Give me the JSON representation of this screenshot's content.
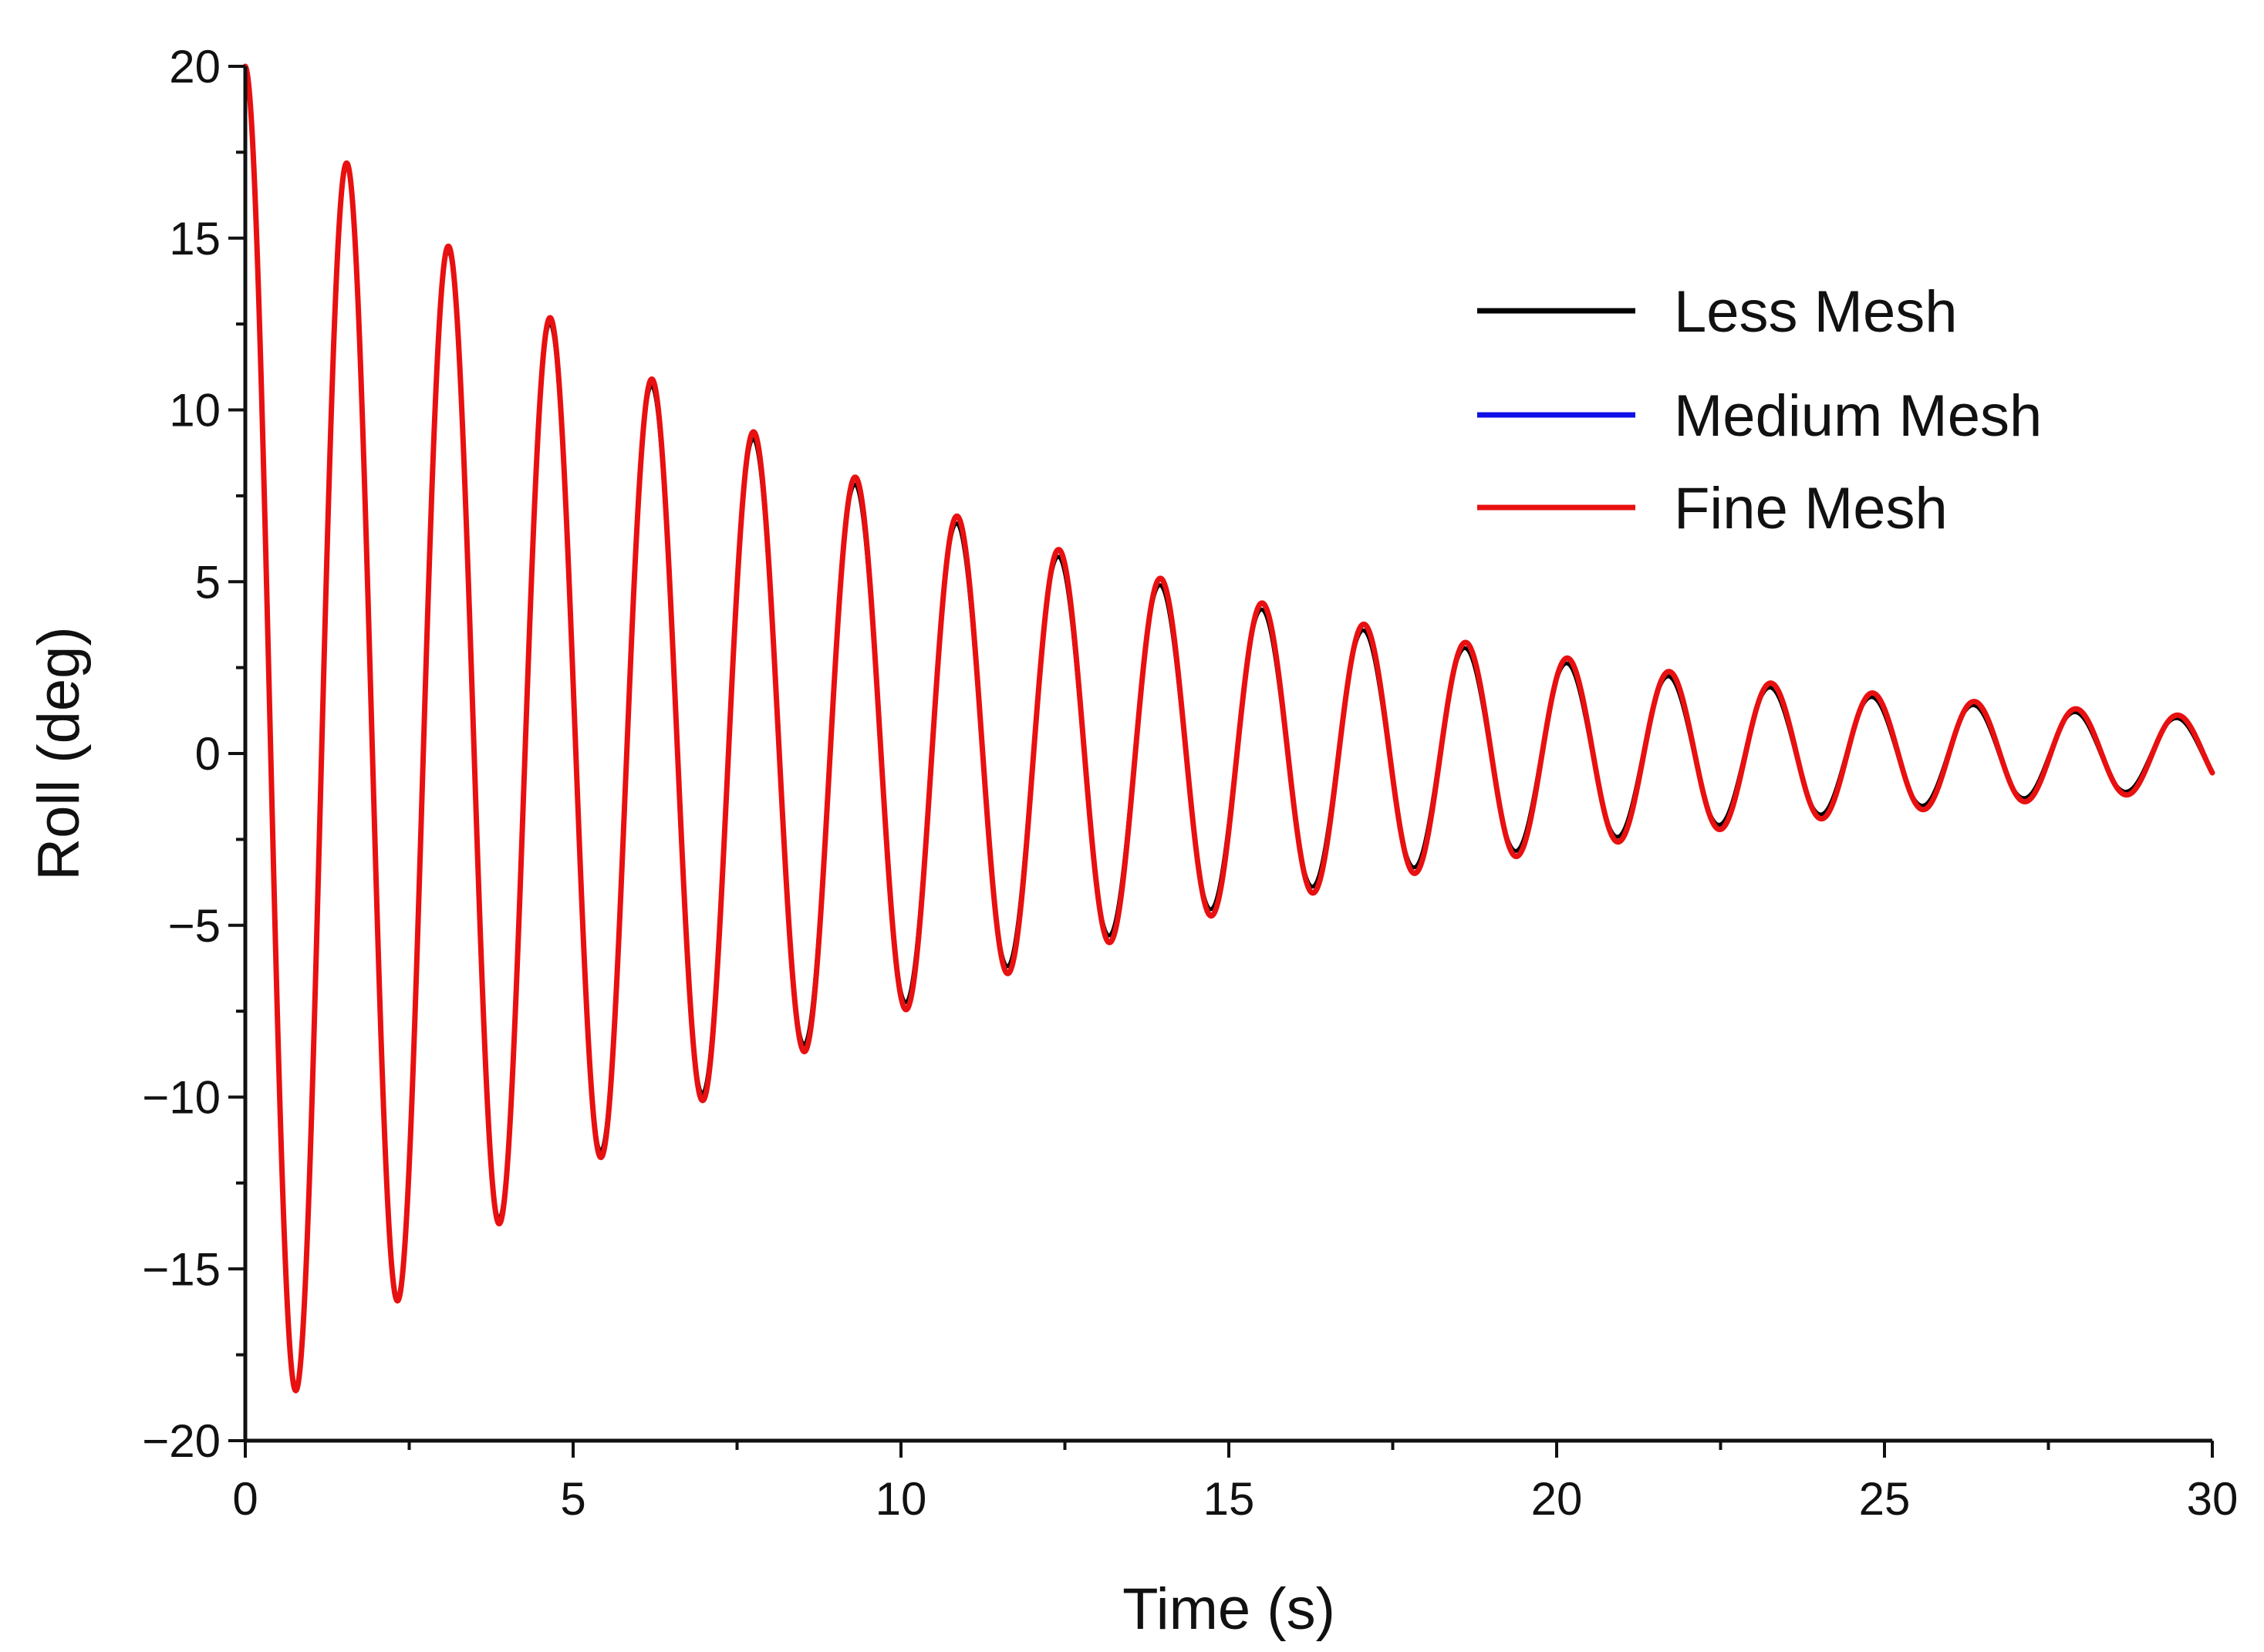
{
  "chart_data": {
    "type": "line",
    "title": "",
    "xlabel": "Time (s)",
    "ylabel": "Roll (deg)",
    "xlim": [
      0,
      30
    ],
    "ylim": [
      -20,
      20
    ],
    "xticks": [
      0,
      5,
      10,
      15,
      20,
      25,
      30
    ],
    "yticks": [
      -20,
      -15,
      -10,
      -5,
      0,
      5,
      10,
      15,
      20
    ],
    "x_tick_labels": [
      "0",
      "5",
      "10",
      "15",
      "20",
      "25",
      "30"
    ],
    "y_tick_labels": [
      "−20",
      "−15",
      "−10",
      "−5",
      "0",
      "5",
      "10",
      "15",
      "20"
    ],
    "grid": false,
    "legend_position": "top-right",
    "series": [
      {
        "name": "Less Mesh",
        "color": "#000000",
        "model": {
          "amplitude": 20,
          "period": 1.55,
          "decay": 0.1008,
          "phase_lag": 0.01
        },
        "peaks": [
          [
            0,
            20
          ],
          [
            0.78,
            -18.2
          ],
          [
            1.55,
            16.4
          ],
          [
            2.33,
            -15.0
          ],
          [
            3.1,
            13.7
          ],
          [
            3.88,
            -12.6
          ],
          [
            4.65,
            11.8
          ],
          [
            5.43,
            -10.8
          ],
          [
            6.2,
            10.2
          ],
          [
            6.98,
            -9.8
          ],
          [
            7.75,
            9.1
          ],
          [
            8.53,
            -8.8
          ],
          [
            9.3,
            8.0
          ],
          [
            10.08,
            -7.8
          ],
          [
            10.85,
            7.2
          ],
          [
            11.63,
            -6.9
          ],
          [
            12.4,
            6.3
          ],
          [
            13.18,
            -6.1
          ],
          [
            13.95,
            5.5
          ],
          [
            14.73,
            -5.3
          ],
          [
            15.5,
            4.9
          ],
          [
            16.28,
            -4.7
          ],
          [
            17.05,
            4.4
          ],
          [
            17.83,
            -4.4
          ],
          [
            18.6,
            4.0
          ],
          [
            19.38,
            -3.9
          ],
          [
            20.15,
            3.7
          ],
          [
            20.93,
            -3.5
          ],
          [
            21.7,
            3.4
          ],
          [
            22.48,
            -3.1
          ],
          [
            23.25,
            3.0
          ],
          [
            24.03,
            -2.9
          ],
          [
            24.8,
            2.7
          ],
          [
            25.58,
            -2.6
          ],
          [
            26.35,
            2.5
          ],
          [
            27.13,
            -2.4
          ],
          [
            27.9,
            2.3
          ],
          [
            28.68,
            -2.3
          ],
          [
            29.45,
            2.2
          ],
          [
            30.0,
            -2.3
          ]
        ]
      },
      {
        "name": "Medium Mesh",
        "color": "#1010e8",
        "model": {
          "amplitude": 20,
          "period": 1.55,
          "decay": 0.0984,
          "phase_lag": 0.02
        },
        "peaks": [
          [
            0,
            20
          ],
          [
            0.78,
            -18.3
          ],
          [
            1.55,
            16.5
          ],
          [
            2.33,
            -15.1
          ],
          [
            3.1,
            13.9
          ],
          [
            3.88,
            -12.9
          ],
          [
            4.65,
            12.2
          ],
          [
            5.43,
            -11.3
          ],
          [
            6.2,
            10.8
          ],
          [
            6.98,
            -10.3
          ],
          [
            7.75,
            9.8
          ],
          [
            8.53,
            -9.2
          ],
          [
            9.3,
            8.8
          ],
          [
            10.08,
            -8.4
          ],
          [
            10.85,
            8.0
          ],
          [
            11.63,
            -7.5
          ],
          [
            12.4,
            7.2
          ],
          [
            13.18,
            -6.8
          ],
          [
            13.95,
            6.4
          ],
          [
            14.73,
            -6.0
          ],
          [
            15.5,
            5.7
          ],
          [
            16.28,
            -5.3
          ],
          [
            17.05,
            5.0
          ],
          [
            17.83,
            -4.7
          ],
          [
            18.6,
            4.5
          ],
          [
            19.38,
            -4.2
          ],
          [
            20.15,
            4.0
          ],
          [
            20.93,
            -3.8
          ],
          [
            21.7,
            3.6
          ],
          [
            22.48,
            -3.3
          ],
          [
            23.25,
            3.3
          ],
          [
            24.03,
            -3.1
          ],
          [
            24.8,
            3.0
          ],
          [
            25.58,
            -2.8
          ],
          [
            26.35,
            2.7
          ],
          [
            27.13,
            -2.6
          ],
          [
            27.9,
            2.5
          ],
          [
            28.68,
            -2.4
          ],
          [
            29.45,
            2.4
          ],
          [
            30.0,
            -2.3
          ]
        ]
      },
      {
        "name": "Fine Mesh",
        "color": "#e81010",
        "model": {
          "amplitude": 20,
          "period": 1.55,
          "decay": 0.0979,
          "phase_lag": 0.025
        },
        "peaks": [
          [
            0,
            20
          ],
          [
            0.78,
            -18.3
          ],
          [
            1.55,
            16.6
          ],
          [
            2.33,
            -15.2
          ],
          [
            3.1,
            14.0
          ],
          [
            3.88,
            -13.0
          ],
          [
            4.65,
            12.3
          ],
          [
            5.43,
            -11.4
          ],
          [
            6.2,
            10.9
          ],
          [
            6.98,
            -10.4
          ],
          [
            7.75,
            9.9
          ],
          [
            8.53,
            -9.3
          ],
          [
            9.3,
            8.9
          ],
          [
            10.08,
            -8.5
          ],
          [
            10.85,
            8.1
          ],
          [
            11.63,
            -7.6
          ],
          [
            12.4,
            7.3
          ],
          [
            13.18,
            -6.8
          ],
          [
            13.95,
            6.5
          ],
          [
            14.73,
            -6.1
          ],
          [
            15.5,
            5.8
          ],
          [
            16.28,
            -5.4
          ],
          [
            17.05,
            5.1
          ],
          [
            17.83,
            -4.8
          ],
          [
            18.6,
            4.6
          ],
          [
            19.38,
            -4.3
          ],
          [
            20.15,
            4.1
          ],
          [
            20.93,
            -3.9
          ],
          [
            21.7,
            3.7
          ],
          [
            22.48,
            -3.4
          ],
          [
            23.25,
            3.4
          ],
          [
            24.03,
            -3.1
          ],
          [
            24.8,
            3.1
          ],
          [
            25.58,
            -2.9
          ],
          [
            26.35,
            2.8
          ],
          [
            27.13,
            -2.7
          ],
          [
            27.9,
            2.6
          ],
          [
            28.68,
            -2.5
          ],
          [
            29.45,
            2.5
          ],
          [
            30.0,
            -2.3
          ]
        ]
      }
    ]
  },
  "legend": {
    "items": [
      {
        "label": "Less Mesh",
        "color": "#000000"
      },
      {
        "label": "Medium Mesh",
        "color": "#1010e8"
      },
      {
        "label": "Fine Mesh",
        "color": "#e81010"
      }
    ]
  }
}
